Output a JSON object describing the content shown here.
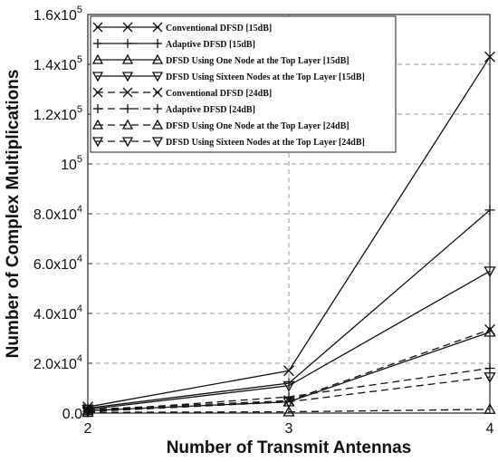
{
  "chart_data": {
    "type": "line",
    "title": "",
    "xlabel": "Number of Transmit Antennas",
    "ylabel": "Number of Complex Multiplications",
    "x": [
      2,
      3,
      4
    ],
    "xlim": [
      2,
      4
    ],
    "ylim": [
      0,
      160000
    ],
    "x_ticks": [
      "2",
      "3",
      "4"
    ],
    "y_ticks": [
      {
        "value": 0,
        "label": "0.0"
      },
      {
        "value": 20000,
        "label": "2.0x10",
        "exp": "4"
      },
      {
        "value": 40000,
        "label": "4.0x10",
        "exp": "4"
      },
      {
        "value": 60000,
        "label": "6.0x10",
        "exp": "4"
      },
      {
        "value": 80000,
        "label": "8.0x10",
        "exp": "4"
      },
      {
        "value": 100000,
        "label": "10",
        "exp": "5"
      },
      {
        "value": 120000,
        "label": "1.2x10",
        "exp": "5"
      },
      {
        "value": 140000,
        "label": "1.4x10",
        "exp": "5"
      },
      {
        "value": 160000,
        "label": "1.6x10",
        "exp": "5"
      }
    ],
    "grid": true,
    "legend_position": "top-left",
    "series": [
      {
        "name": "Conventional DFSD [15dB]",
        "marker": "x",
        "dash": "solid",
        "values": [
          2500,
          17000,
          143000
        ]
      },
      {
        "name": "Adaptive DFSD [15dB]",
        "marker": "plus",
        "dash": "solid",
        "values": [
          2000,
          12000,
          81500
        ]
      },
      {
        "name": "DFSD Using One Node at the Top Layer [15dB]",
        "marker": "triangle-up",
        "dash": "solid",
        "values": [
          1000,
          4500,
          32500
        ]
      },
      {
        "name": "DFSD Using Sixteen Nodes at the Top Layer [15dB]",
        "marker": "triangle-down",
        "dash": "solid",
        "values": [
          1500,
          11000,
          57000
        ]
      },
      {
        "name": "Conventional DFSD [24dB]",
        "marker": "x",
        "dash": "dashed",
        "values": [
          1500,
          5000,
          33500
        ]
      },
      {
        "name": "Adaptive DFSD [24dB]",
        "marker": "plus",
        "dash": "dashed",
        "values": [
          800,
          6500,
          18000
        ]
      },
      {
        "name": "DFSD Using One Node at the Top Layer [24dB]",
        "marker": "triangle-up",
        "dash": "dashed",
        "values": [
          300,
          500,
          1500
        ]
      },
      {
        "name": "DFSD Using Sixteen Nodes at the Top Layer [24dB]",
        "marker": "triangle-down",
        "dash": "dashed",
        "values": [
          600,
          4500,
          14500
        ]
      }
    ]
  }
}
